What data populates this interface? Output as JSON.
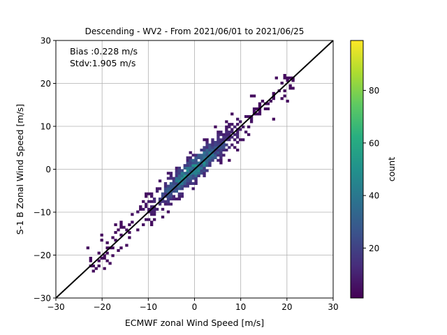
{
  "chart_data": {
    "type": "heatmap",
    "title": "Descending - WV2 - From 2021/06/01 to 2021/06/25",
    "xlabel": "ECMWF zonal Wind Speed [m/s]",
    "ylabel": "S-1 B Zonal Wind Speed [m/s]",
    "xlim": [
      -30,
      30
    ],
    "ylim": [
      -30,
      30
    ],
    "xticks": [
      -30,
      -20,
      -10,
      0,
      10,
      20,
      30
    ],
    "yticks": [
      -30,
      -20,
      -10,
      0,
      10,
      20,
      30
    ],
    "xtick_labels": [
      "−30",
      "−20",
      "−10",
      "0",
      "10",
      "20",
      "30"
    ],
    "ytick_labels": [
      "−30",
      "−20",
      "−10",
      "0",
      "10",
      "20",
      "30"
    ],
    "grid": true,
    "colormap": "viridis",
    "colorbar": {
      "label": "count",
      "min": 1,
      "max": 99,
      "ticks": [
        20,
        40,
        60,
        80
      ]
    },
    "annotations": [
      "Bias :0.228 m/s",
      "Stdv:1.905 m/s"
    ],
    "reference_line": {
      "x": [
        -30,
        30
      ],
      "y": [
        -30,
        30
      ],
      "color": "#000000"
    },
    "bias": 0.228,
    "stdv": 1.905
  }
}
